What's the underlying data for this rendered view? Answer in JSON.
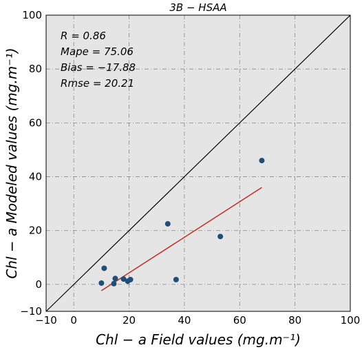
{
  "chart_data": {
    "type": "scatter",
    "title": "3B − HSAA",
    "xlabel": "Chl − a Field values (mg.m⁻¹)",
    "ylabel": "Chl − a Modeled values (mg.m⁻¹)",
    "xlim": [
      -10,
      100
    ],
    "ylim": [
      -10,
      100
    ],
    "xticks": [
      -10,
      0,
      20,
      40,
      60,
      80,
      100
    ],
    "yticks": [
      -10,
      0,
      20,
      40,
      60,
      80,
      100
    ],
    "x_tick_labels": [
      "−10",
      "0",
      "20",
      "40",
      "60",
      "80",
      "100"
    ],
    "y_tick_labels": [
      "−10",
      "0",
      "20",
      "40",
      "60",
      "80",
      "100"
    ],
    "grid": true,
    "points": {
      "color": "#1f4e79",
      "x": [
        10,
        11,
        14.5,
        15,
        18,
        19.5,
        20.5,
        34,
        37,
        53,
        68
      ],
      "y": [
        0.5,
        6,
        0.3,
        2.2,
        2,
        1.2,
        1.8,
        22.5,
        1.8,
        17.8,
        46
      ]
    },
    "identity_line": {
      "x": [
        -10,
        100
      ],
      "y": [
        -10,
        100
      ],
      "color": "#000000"
    },
    "fit_line": {
      "x": [
        10,
        68
      ],
      "y": [
        -2.3,
        36
      ],
      "color": "#c0392b"
    },
    "stats": [
      "R = 0.86",
      "Mape = 75.06",
      "Bias = −17.88",
      "Rmse = 20.21"
    ]
  }
}
